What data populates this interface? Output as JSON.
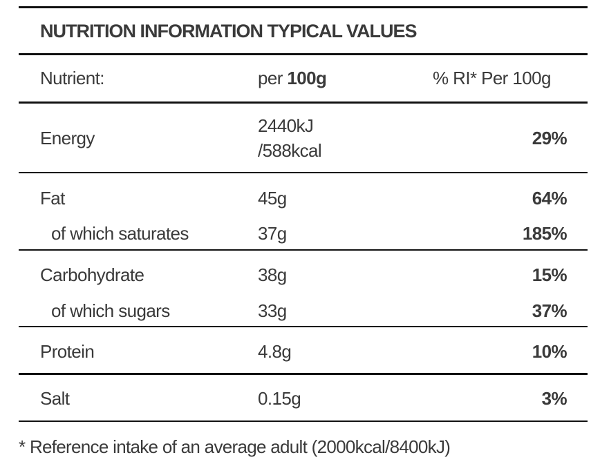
{
  "title": "NUTRITION INFORMATION TYPICAL VALUES",
  "header": {
    "nutrient": "Nutrient:",
    "per": "per",
    "per_unit": "100g",
    "ri": "% RI* Per 100g"
  },
  "rows": [
    {
      "nutrient": "Energy",
      "per": [
        "2440kJ",
        "/588kcal"
      ],
      "ri": "29%"
    },
    {
      "nutrient": "Fat",
      "per": "45g",
      "ri": "64%"
    },
    {
      "nutrient": "of which saturates",
      "per": "37g",
      "ri": "185%"
    },
    {
      "nutrient": "Carbohydrate",
      "per": "38g",
      "ri": "15%"
    },
    {
      "nutrient": "of which sugars",
      "per": "33g",
      "ri": "37%"
    },
    {
      "nutrient": "Protein",
      "per": "4.8g",
      "ri": "10%"
    },
    {
      "nutrient": "Salt",
      "per": "0.15g",
      "ri": "3%"
    }
  ],
  "footnote": "* Reference intake of an average adult (2000kcal/8400kJ)"
}
